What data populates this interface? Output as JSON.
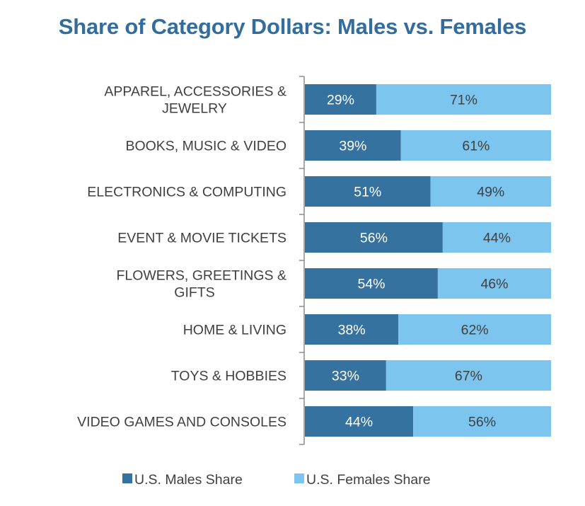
{
  "chart_data": {
    "type": "bar",
    "orientation": "horizontal",
    "stacked": "percent",
    "title": "Share of Category Dollars: Males vs. Females",
    "xlabel": "",
    "ylabel": "",
    "xlim": [
      0,
      100
    ],
    "grid": false,
    "legend_position": "bottom",
    "categories": [
      [
        "APPAREL, ACCESSORIES  &",
        "JEWELRY"
      ],
      [
        "BOOKS, MUSIC & VIDEO"
      ],
      [
        "ELECTRONICS  & COMPUTING"
      ],
      [
        "EVENT & MOVIE TICKETS"
      ],
      [
        "FLOWERS, GREETINGS  &",
        "GIFTS"
      ],
      [
        "HOME & LIVING"
      ],
      [
        "TOYS & HOBBIES"
      ],
      [
        "VIDEO GAMES AND CONSOLES"
      ]
    ],
    "series": [
      {
        "name": "U.S. Males Share",
        "color": "#35729f",
        "values": [
          29,
          39,
          51,
          56,
          54,
          38,
          33,
          44
        ]
      },
      {
        "name": "U.S. Females Share",
        "color": "#7cc5ef",
        "values": [
          71,
          61,
          49,
          44,
          46,
          62,
          67,
          56
        ]
      }
    ],
    "value_suffix": "%"
  }
}
